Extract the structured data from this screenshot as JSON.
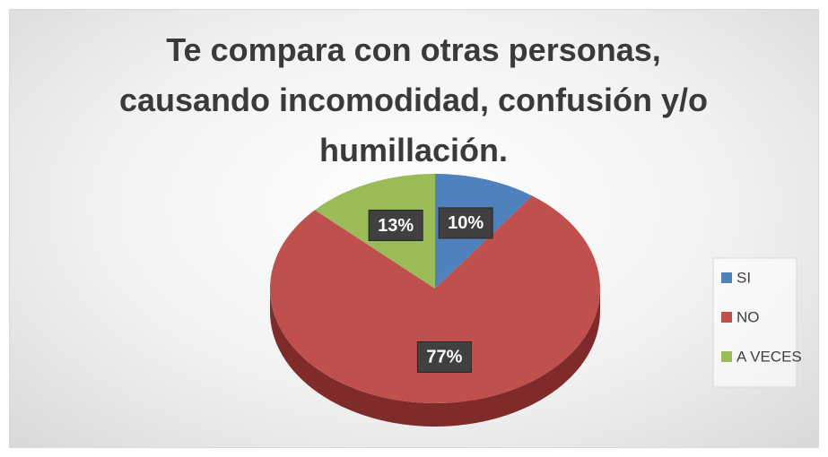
{
  "chart_data": {
    "type": "pie",
    "title": "Te compara con otras personas, causando incomodidad, confusión y/o humillación.",
    "categories": [
      "SI",
      "NO",
      "A VECES"
    ],
    "values": [
      10,
      77,
      13
    ],
    "value_labels": [
      "10%",
      "77%",
      "13%"
    ],
    "colors": [
      "#4f81bd",
      "#c0504d",
      "#9bbb59"
    ],
    "legend": "right"
  }
}
